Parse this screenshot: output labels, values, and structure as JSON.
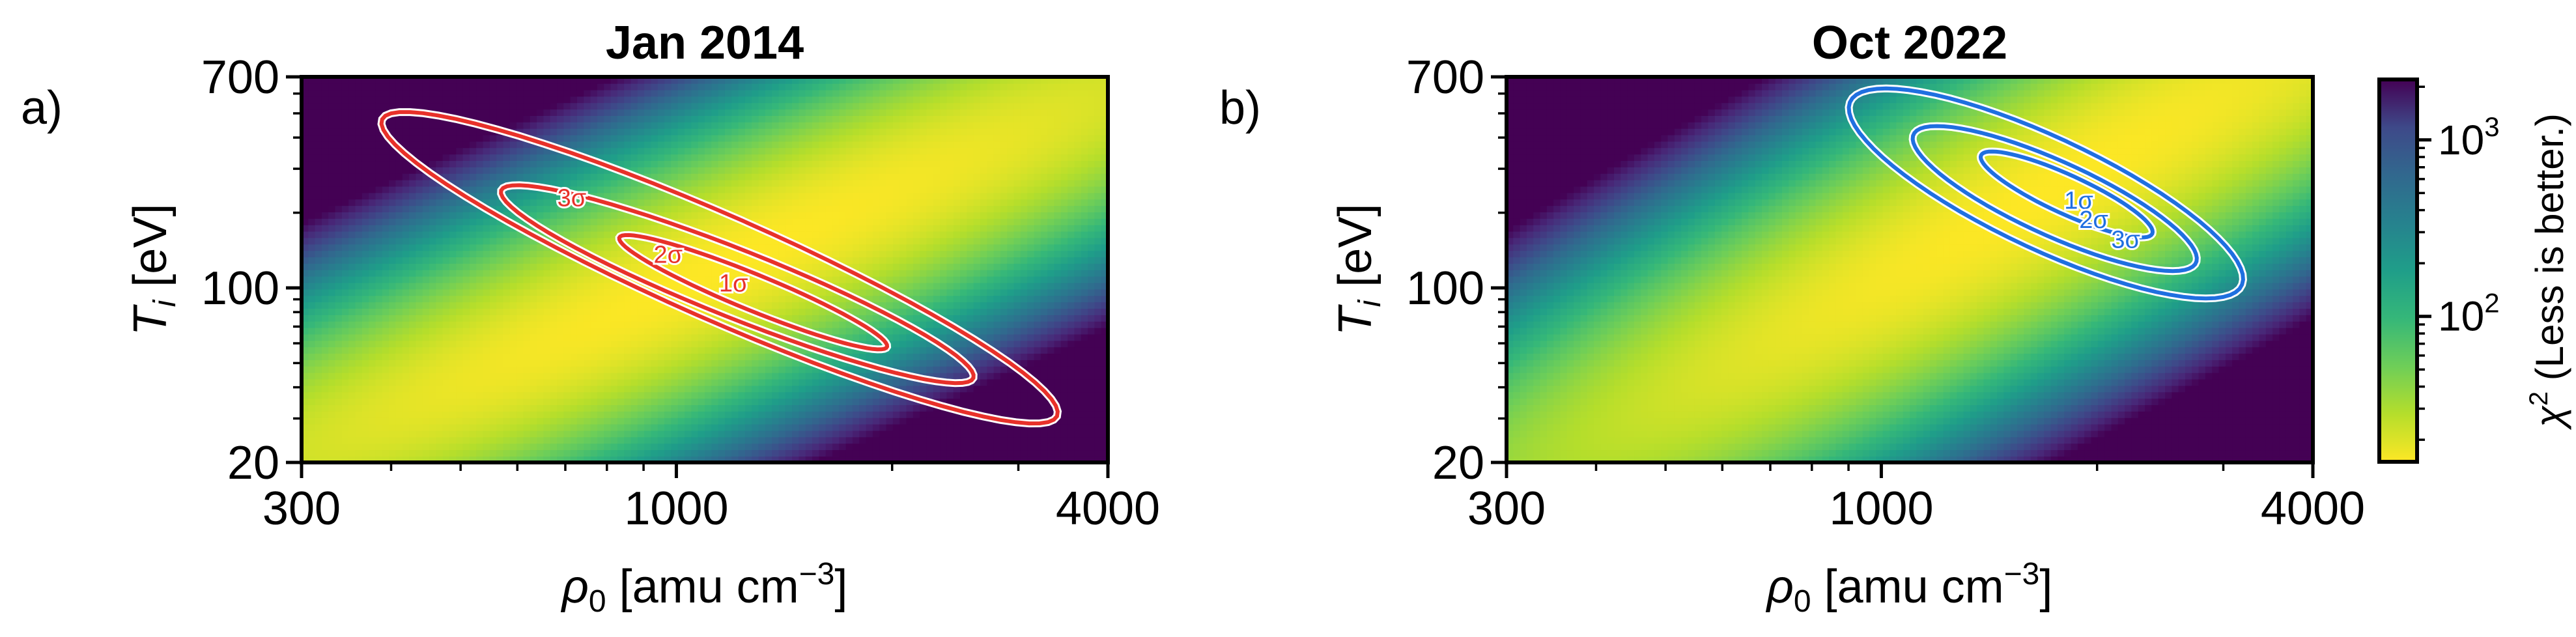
{
  "chart_data": [
    {
      "type": "heatmap",
      "panel_label": "a)",
      "title": "Jan 2014",
      "xlabel_parts": [
        "ρ",
        "0",
        " [amu cm",
        "−3",
        "]"
      ],
      "ylabel_parts": [
        "T",
        "i",
        " [eV]"
      ],
      "xscale": "log",
      "yscale": "log",
      "xlim": [
        300,
        4000
      ],
      "ylim": [
        20,
        700
      ],
      "xticks": [
        {
          "value": 300,
          "label": "300"
        },
        {
          "value": 1000,
          "label": "1000"
        },
        {
          "value": 4000,
          "label": "4000"
        }
      ],
      "yticks": [
        {
          "value": 20,
          "label": "20"
        },
        {
          "value": 100,
          "label": "100"
        },
        {
          "value": 700,
          "label": "700"
        }
      ],
      "chi2_min": 15,
      "best_fit": {
        "rho0": 1120,
        "Ti": 100
      },
      "contour_color": "#e8312a",
      "contours": [
        {
          "label": "1σ",
          "rho0_range": [
            840,
            1950
          ],
          "Ti_range": [
            57,
            162
          ]
        },
        {
          "label": "2σ",
          "rho0_range": [
            580,
            2550
          ],
          "Ti_range": [
            42,
            255
          ]
        },
        {
          "label": "3σ",
          "rho0_range": [
            400,
            3300
          ],
          "Ti_range": [
            29,
            500
          ]
        }
      ]
    },
    {
      "type": "heatmap",
      "panel_label": "b)",
      "title": "Oct 2022",
      "xlabel_parts": [
        "ρ",
        "0",
        " [amu cm",
        "−3",
        "]"
      ],
      "ylabel_parts": [
        "T",
        "i",
        " [eV]"
      ],
      "xscale": "log",
      "yscale": "log",
      "xlim": [
        300,
        4000
      ],
      "ylim": [
        20,
        700
      ],
      "xticks": [
        {
          "value": 300,
          "label": "300"
        },
        {
          "value": 1000,
          "label": "1000"
        },
        {
          "value": 4000,
          "label": "4000"
        }
      ],
      "yticks": [
        {
          "value": 20,
          "label": "20"
        },
        {
          "value": 100,
          "label": "100"
        },
        {
          "value": 700,
          "label": "700"
        }
      ],
      "chi2_min": 15,
      "best_fit": {
        "rho0": 1750,
        "Ti": 240
      },
      "contour_color": "#1f6fe0",
      "contours": [
        {
          "label": "1σ",
          "rho0_range": [
            1400,
            2350
          ],
          "Ti_range": [
            160,
            350
          ]
        },
        {
          "label": "2σ",
          "rho0_range": [
            1150,
            2650
          ],
          "Ti_range": [
            118,
            440
          ]
        },
        {
          "label": "3σ",
          "rho0_range": [
            960,
            3000
          ],
          "Ti_range": [
            92,
            620
          ]
        }
      ]
    }
  ],
  "colorbar": {
    "scale": "log",
    "range": [
      15,
      2200
    ],
    "colormap": "viridis_r",
    "label_parts": [
      "χ",
      "2",
      " (Less is better.)"
    ],
    "ticks": [
      {
        "value": 100,
        "base": "10",
        "exp": "2"
      },
      {
        "value": 1000,
        "base": "10",
        "exp": "3"
      }
    ]
  }
}
